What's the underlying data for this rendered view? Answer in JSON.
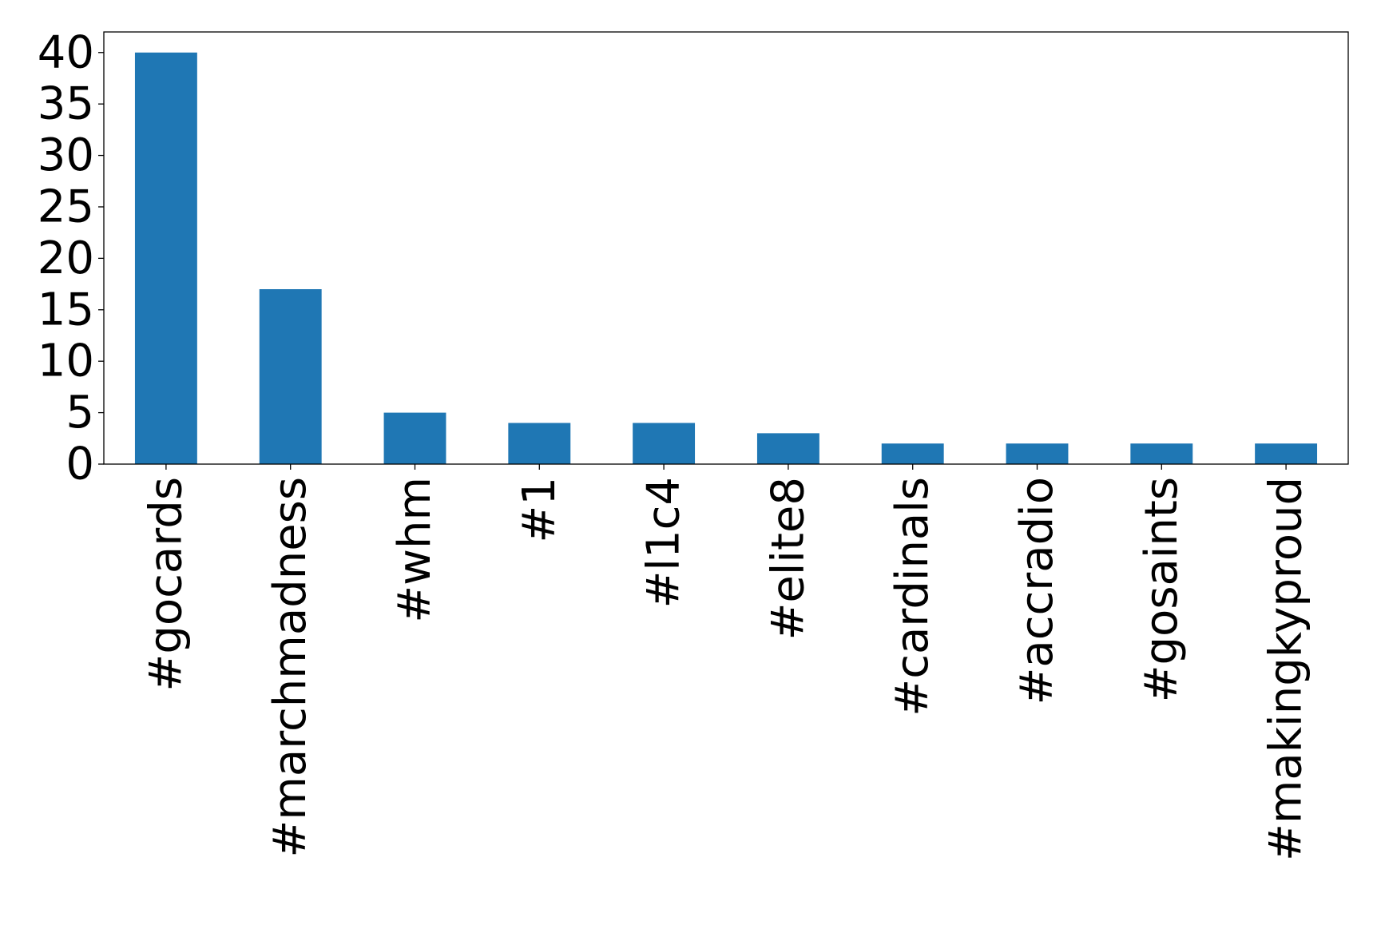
{
  "chart_data": {
    "type": "bar",
    "title": "",
    "xlabel": "",
    "ylabel": "",
    "categories": [
      "#gocards",
      "#marchmadness",
      "#whm",
      "#1",
      "#l1c4",
      "#elite8",
      "#cardinals",
      "#accradio",
      "#gosaints",
      "#makingkyproud"
    ],
    "values": [
      40,
      17,
      5,
      4,
      4,
      3,
      2,
      2,
      2,
      2
    ],
    "ylim": [
      0,
      42
    ],
    "yticks": [
      0,
      5,
      10,
      15,
      20,
      25,
      30,
      35,
      40
    ],
    "grid": false,
    "bar_color": "#1f77b4"
  }
}
